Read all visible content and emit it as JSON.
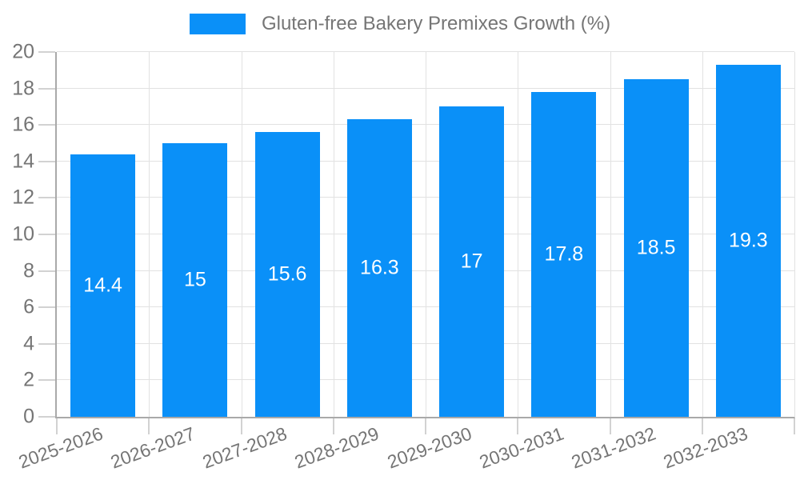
{
  "legend": {
    "label": "Gluten-free Bakery Premixes Growth (%)"
  },
  "colors": {
    "bar": "#0a90f8",
    "grid": "#e2e2e2",
    "axis": "#a9a9a9",
    "tick": "#d2d2d2",
    "text": "#757575",
    "data_label": "#ffffff"
  },
  "chart_data": {
    "type": "bar",
    "title": "Gluten-free Bakery Premixes Growth (%)",
    "categories": [
      "2025-2026",
      "2026-2027",
      "2027-2028",
      "2028-2029",
      "2029-2030",
      "2030-2031",
      "2031-2032",
      "2032-2033"
    ],
    "values": [
      14.4,
      15,
      15.6,
      16.3,
      17,
      17.8,
      18.5,
      19.3
    ],
    "data_labels": [
      "14.4",
      "15",
      "15.6",
      "16.3",
      "17",
      "17.8",
      "18.5",
      "19.3"
    ],
    "xlabel": "",
    "ylabel": "",
    "ylim": [
      0,
      20
    ],
    "ytick_step": 2,
    "ytick_labels": [
      "0",
      "2",
      "4",
      "6",
      "8",
      "10",
      "12",
      "14",
      "16",
      "18",
      "20"
    ],
    "grid": true,
    "legend_position": "top",
    "bar_color": "#0a90f8",
    "value_labels_inside": true
  }
}
